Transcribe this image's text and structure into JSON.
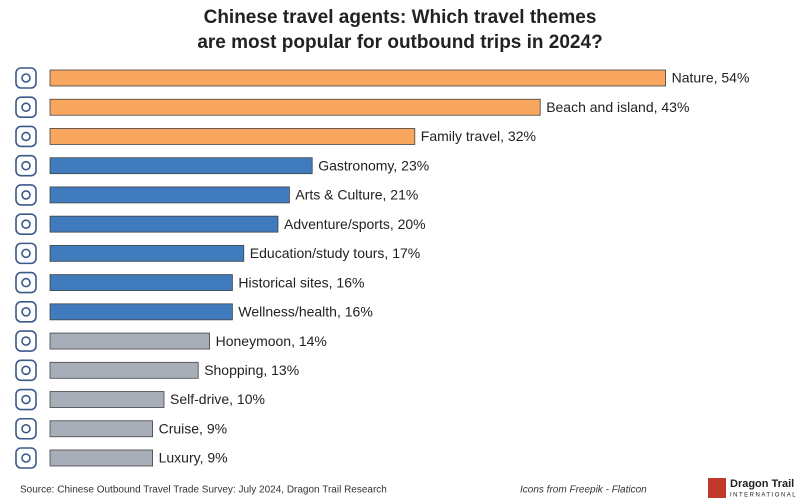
{
  "chart_data": {
    "type": "bar",
    "orientation": "horizontal",
    "title": [
      "Chinese travel agents: Which travel themes",
      "are most popular for outbound trips in 2024?"
    ],
    "values": [
      54,
      43,
      32,
      23,
      21,
      20,
      17,
      16,
      16,
      14,
      13,
      10,
      9,
      9
    ],
    "value_labels": [
      "Nature, 54%",
      "Beach and island, 43%",
      "Family travel, 32%",
      "Gastronomy, 23%",
      "Arts & Culture, 21%",
      "Adventure/sports, 20%",
      "Education/study tours, 17%",
      "Historical sites, 16%",
      "Wellness/health, 16%",
      "Honeymoon, 14%",
      "Shopping, 13%",
      "Self-drive, 10%",
      "Cruise, 9%",
      "Luxury, 9%"
    ],
    "colors": [
      "#f9a65e",
      "#f9a65e",
      "#f9a65e",
      "#3f7bbd",
      "#3f7bbd",
      "#3f7bbd",
      "#3f7bbd",
      "#3f7bbd",
      "#3f7bbd",
      "#a7aeb8",
      "#a7aeb8",
      "#a7aeb8",
      "#a7aeb8",
      "#a7aeb8"
    ],
    "xlim": [
      0,
      65
    ]
  },
  "footer": {
    "source": "Source: Chinese Outbound Travel Trade Survey: July 2024, Dragon Trail Research",
    "icons_credit": "Icons from Freepik - Flaticon",
    "logo": [
      "Dragon Trail",
      "INTERNATIONAL"
    ]
  }
}
